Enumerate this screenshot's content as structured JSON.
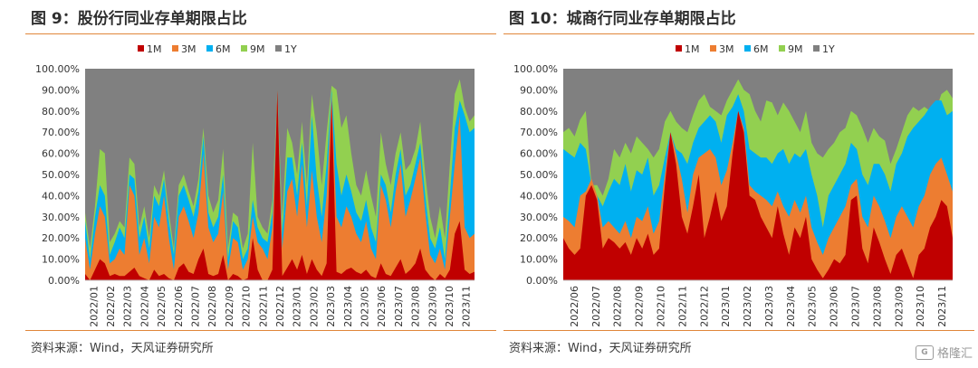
{
  "panels": [
    {
      "title": "图 9：股份行同业存单期限占比",
      "source": "资料来源：Wind，天风证券研究所"
    },
    {
      "title": "图 10：城商行同业存单期限占比",
      "source": "资料来源：Wind，天风证券研究所"
    }
  ],
  "watermark": {
    "text": "格隆汇",
    "logo": "G"
  },
  "chart_data": [
    {
      "type": "area",
      "stacked": true,
      "title": "图 9：股份行同业存单期限占比",
      "legend_position": "top",
      "grid": false,
      "ylim": [
        0,
        1
      ],
      "yticks": [
        "0.00%",
        "10.00%",
        "20.00%",
        "30.00%",
        "40.00%",
        "50.00%",
        "60.00%",
        "70.00%",
        "80.00%",
        "90.00%",
        "100.00%"
      ],
      "xticks": [
        "2022/01",
        "2022/02",
        "2022/03",
        "2022/04",
        "2022/05",
        "2022/06",
        "2022/07",
        "2022/08",
        "2022/09",
        "2022/10",
        "2022/11",
        "2022/12",
        "2023/01",
        "2023/02",
        "2023/03",
        "2023/04",
        "2023/05",
        "2023/06",
        "2023/07",
        "2023/08",
        "2023/09",
        "2023/10",
        "2023/11"
      ],
      "colors": {
        "1M": "#c00000",
        "3M": "#ed7d31",
        "6M": "#00b0f0",
        "9M": "#92d050",
        "1Y": "#808080"
      },
      "series": [
        {
          "name": "1M",
          "cum": [
            0.03,
            0.0,
            0.05,
            0.1,
            0.08,
            0.02,
            0.03,
            0.02,
            0.02,
            0.04,
            0.06,
            0.02,
            0.01,
            0.0,
            0.05,
            0.02,
            0.03,
            0.01,
            0.0,
            0.06,
            0.08,
            0.04,
            0.03,
            0.1,
            0.15,
            0.03,
            0.02,
            0.03,
            0.12,
            0.0,
            0.03,
            0.02,
            0.0,
            0.01,
            0.2,
            0.05,
            0.0,
            0.0,
            0.05,
            0.9,
            0.02,
            0.06,
            0.1,
            0.05,
            0.12,
            0.03,
            0.1,
            0.05,
            0.02,
            0.08,
            0.85,
            0.04,
            0.03,
            0.05,
            0.06,
            0.04,
            0.03,
            0.05,
            0.02,
            0.01,
            0.08,
            0.03,
            0.02,
            0.06,
            0.1,
            0.03,
            0.05,
            0.08,
            0.15,
            0.05,
            0.02,
            0.0,
            0.03,
            0.01,
            0.05,
            0.22,
            0.28,
            0.05,
            0.03,
            0.04
          ]
        },
        {
          "name": "3M",
          "cum": [
            0.2,
            0.05,
            0.22,
            0.35,
            0.3,
            0.08,
            0.1,
            0.15,
            0.12,
            0.45,
            0.4,
            0.12,
            0.2,
            0.08,
            0.3,
            0.25,
            0.4,
            0.2,
            0.05,
            0.3,
            0.35,
            0.28,
            0.2,
            0.32,
            0.6,
            0.25,
            0.18,
            0.22,
            0.42,
            0.05,
            0.2,
            0.18,
            0.05,
            0.1,
            0.3,
            0.18,
            0.15,
            0.1,
            0.25,
            0.9,
            0.15,
            0.42,
            0.48,
            0.3,
            0.55,
            0.25,
            0.52,
            0.3,
            0.18,
            0.4,
            0.88,
            0.3,
            0.25,
            0.35,
            0.3,
            0.22,
            0.18,
            0.28,
            0.15,
            0.1,
            0.45,
            0.38,
            0.25,
            0.42,
            0.55,
            0.3,
            0.38,
            0.48,
            0.58,
            0.32,
            0.12,
            0.08,
            0.15,
            0.05,
            0.3,
            0.55,
            0.78,
            0.25,
            0.2,
            0.22
          ]
        },
        {
          "name": "6M",
          "cum": [
            0.28,
            0.1,
            0.3,
            0.45,
            0.4,
            0.12,
            0.18,
            0.25,
            0.2,
            0.5,
            0.48,
            0.2,
            0.3,
            0.15,
            0.4,
            0.35,
            0.48,
            0.28,
            0.12,
            0.4,
            0.45,
            0.38,
            0.3,
            0.42,
            0.68,
            0.32,
            0.25,
            0.3,
            0.5,
            0.1,
            0.28,
            0.25,
            0.1,
            0.15,
            0.38,
            0.25,
            0.2,
            0.18,
            0.32,
            0.9,
            0.22,
            0.58,
            0.58,
            0.4,
            0.65,
            0.35,
            0.78,
            0.48,
            0.3,
            0.55,
            0.9,
            0.55,
            0.4,
            0.5,
            0.42,
            0.32,
            0.28,
            0.38,
            0.25,
            0.18,
            0.5,
            0.45,
            0.32,
            0.5,
            0.62,
            0.4,
            0.45,
            0.55,
            0.65,
            0.4,
            0.2,
            0.15,
            0.25,
            0.1,
            0.4,
            0.72,
            0.85,
            0.78,
            0.7,
            0.72
          ]
        },
        {
          "name": "9M",
          "cum": [
            0.32,
            0.15,
            0.35,
            0.62,
            0.6,
            0.18,
            0.22,
            0.28,
            0.25,
            0.58,
            0.55,
            0.25,
            0.35,
            0.2,
            0.45,
            0.4,
            0.52,
            0.32,
            0.15,
            0.45,
            0.5,
            0.42,
            0.35,
            0.48,
            0.72,
            0.4,
            0.32,
            0.38,
            0.62,
            0.15,
            0.32,
            0.3,
            0.15,
            0.22,
            0.65,
            0.3,
            0.25,
            0.22,
            0.38,
            0.9,
            0.3,
            0.72,
            0.65,
            0.5,
            0.75,
            0.45,
            0.88,
            0.7,
            0.45,
            0.7,
            0.92,
            0.9,
            0.72,
            0.78,
            0.6,
            0.45,
            0.4,
            0.52,
            0.4,
            0.3,
            0.7,
            0.55,
            0.45,
            0.6,
            0.7,
            0.52,
            0.55,
            0.62,
            0.75,
            0.5,
            0.3,
            0.2,
            0.35,
            0.2,
            0.55,
            0.88,
            0.95,
            0.82,
            0.75,
            0.78
          ]
        }
      ]
    },
    {
      "type": "area",
      "stacked": true,
      "title": "图 10：城商行同业存单期限占比",
      "legend_position": "top",
      "grid": false,
      "ylim": [
        0,
        1
      ],
      "yticks": [
        "0.00%",
        "10.00%",
        "20.00%",
        "30.00%",
        "40.00%",
        "50.00%",
        "60.00%",
        "70.00%",
        "80.00%",
        "90.00%",
        "100.00%"
      ],
      "xticks": [
        "2022/06",
        "2022/07",
        "2022/08",
        "2022/09",
        "2022/10",
        "2022/11",
        "2022/12",
        "2023/01",
        "2023/02",
        "2023/03",
        "2023/04",
        "2023/05",
        "2023/06",
        "2023/07",
        "2023/08",
        "2023/09",
        "2023/10",
        "2023/11"
      ],
      "colors": {
        "1M": "#c00000",
        "3M": "#ed7d31",
        "6M": "#00b0f0",
        "9M": "#92d050",
        "1Y": "#808080"
      },
      "series": [
        {
          "name": "1M",
          "cum": [
            0.2,
            0.15,
            0.12,
            0.15,
            0.4,
            0.45,
            0.38,
            0.15,
            0.2,
            0.18,
            0.15,
            0.18,
            0.12,
            0.2,
            0.15,
            0.22,
            0.12,
            0.15,
            0.45,
            0.7,
            0.55,
            0.3,
            0.22,
            0.35,
            0.5,
            0.2,
            0.3,
            0.42,
            0.28,
            0.35,
            0.6,
            0.8,
            0.7,
            0.4,
            0.38,
            0.3,
            0.25,
            0.2,
            0.35,
            0.22,
            0.12,
            0.25,
            0.2,
            0.3,
            0.1,
            0.05,
            0.01,
            0.05,
            0.1,
            0.08,
            0.12,
            0.38,
            0.4,
            0.15,
            0.08,
            0.25,
            0.18,
            0.1,
            0.03,
            0.12,
            0.15,
            0.08,
            0.01,
            0.12,
            0.15,
            0.25,
            0.3,
            0.38,
            0.35,
            0.2
          ]
        },
        {
          "name": "3M",
          "cum": [
            0.3,
            0.28,
            0.25,
            0.4,
            0.42,
            0.48,
            0.4,
            0.25,
            0.28,
            0.25,
            0.22,
            0.28,
            0.2,
            0.3,
            0.28,
            0.35,
            0.22,
            0.28,
            0.5,
            0.7,
            0.6,
            0.48,
            0.32,
            0.5,
            0.58,
            0.6,
            0.62,
            0.58,
            0.45,
            0.52,
            0.65,
            0.8,
            0.72,
            0.45,
            0.42,
            0.4,
            0.38,
            0.35,
            0.42,
            0.35,
            0.3,
            0.38,
            0.32,
            0.4,
            0.25,
            0.18,
            0.12,
            0.2,
            0.25,
            0.3,
            0.35,
            0.45,
            0.48,
            0.3,
            0.25,
            0.4,
            0.35,
            0.28,
            0.2,
            0.3,
            0.35,
            0.3,
            0.25,
            0.35,
            0.4,
            0.5,
            0.55,
            0.58,
            0.5,
            0.42
          ]
        },
        {
          "name": "6M",
          "cum": [
            0.62,
            0.6,
            0.58,
            0.65,
            0.62,
            0.45,
            0.4,
            0.35,
            0.42,
            0.48,
            0.45,
            0.55,
            0.42,
            0.52,
            0.5,
            0.58,
            0.4,
            0.45,
            0.58,
            0.7,
            0.62,
            0.6,
            0.55,
            0.65,
            0.72,
            0.75,
            0.78,
            0.75,
            0.65,
            0.78,
            0.82,
            0.88,
            0.8,
            0.62,
            0.6,
            0.58,
            0.58,
            0.55,
            0.6,
            0.62,
            0.55,
            0.6,
            0.58,
            0.62,
            0.5,
            0.4,
            0.25,
            0.4,
            0.45,
            0.5,
            0.55,
            0.65,
            0.62,
            0.5,
            0.45,
            0.55,
            0.55,
            0.5,
            0.42,
            0.55,
            0.6,
            0.68,
            0.72,
            0.75,
            0.78,
            0.82,
            0.85,
            0.85,
            0.78,
            0.8
          ]
        },
        {
          "name": "9M",
          "cum": [
            0.7,
            0.72,
            0.68,
            0.76,
            0.8,
            0.45,
            0.45,
            0.4,
            0.48,
            0.62,
            0.58,
            0.65,
            0.6,
            0.68,
            0.65,
            0.62,
            0.58,
            0.62,
            0.75,
            0.8,
            0.75,
            0.72,
            0.7,
            0.78,
            0.85,
            0.88,
            0.82,
            0.8,
            0.78,
            0.85,
            0.9,
            0.95,
            0.9,
            0.88,
            0.8,
            0.75,
            0.85,
            0.84,
            0.78,
            0.84,
            0.8,
            0.75,
            0.7,
            0.8,
            0.65,
            0.6,
            0.58,
            0.62,
            0.65,
            0.7,
            0.72,
            0.8,
            0.78,
            0.72,
            0.65,
            0.72,
            0.68,
            0.66,
            0.55,
            0.62,
            0.7,
            0.78,
            0.82,
            0.8,
            0.82,
            0.8,
            0.8,
            0.88,
            0.9,
            0.86
          ]
        }
      ]
    }
  ],
  "legend_labels": [
    "1M",
    "3M",
    "6M",
    "9M",
    "1Y"
  ]
}
